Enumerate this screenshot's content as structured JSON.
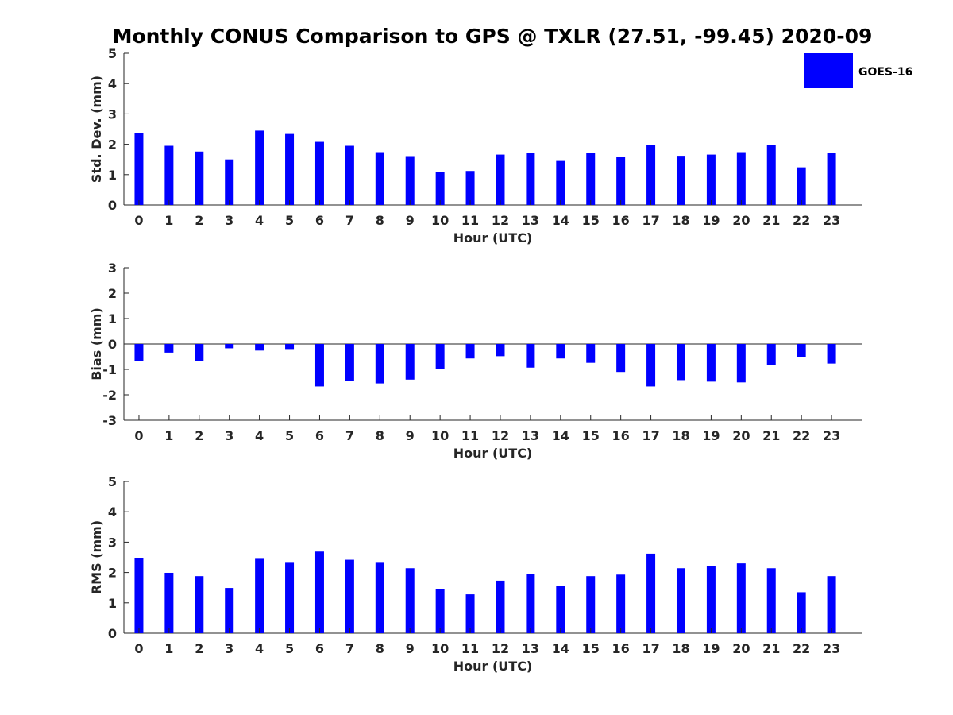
{
  "chart_data": {
    "title": "Monthly CONUS Comparison to GPS @ TXLR (27.51, -99.45) 2020-09",
    "legend": {
      "label": "GOES-16",
      "color": "#0000ff",
      "placement": "top-right"
    },
    "bar_color": "#0000ff",
    "grid": false,
    "panels": [
      {
        "type": "bar",
        "name": "std-dev",
        "ylabel": "Std. Dev. (mm)",
        "xlabel": "Hour (UTC)",
        "ylim": [
          0,
          5
        ],
        "yticks": [
          0,
          1,
          2,
          3,
          4,
          5
        ],
        "categories": [
          "0",
          "1",
          "2",
          "3",
          "4",
          "5",
          "6",
          "7",
          "8",
          "9",
          "10",
          "11",
          "12",
          "13",
          "14",
          "15",
          "16",
          "17",
          "18",
          "19",
          "20",
          "21",
          "22",
          "23"
        ],
        "values": [
          2.37,
          1.95,
          1.76,
          1.5,
          2.45,
          2.34,
          2.08,
          1.95,
          1.74,
          1.61,
          1.09,
          1.12,
          1.66,
          1.71,
          1.45,
          1.72,
          1.58,
          1.98,
          1.62,
          1.66,
          1.74,
          1.98,
          1.24,
          1.72
        ]
      },
      {
        "type": "bar",
        "name": "bias",
        "ylabel": "Bias (mm)",
        "xlabel": "Hour (UTC)",
        "ylim": [
          -3,
          3
        ],
        "yticks": [
          -3,
          -2,
          -1,
          0,
          1,
          2,
          3
        ],
        "categories": [
          "0",
          "1",
          "2",
          "3",
          "4",
          "5",
          "6",
          "7",
          "8",
          "9",
          "10",
          "11",
          "12",
          "13",
          "14",
          "15",
          "16",
          "17",
          "18",
          "19",
          "20",
          "21",
          "22",
          "23"
        ],
        "values": [
          -0.67,
          -0.34,
          -0.66,
          -0.17,
          -0.26,
          -0.2,
          -1.67,
          -1.46,
          -1.55,
          -1.4,
          -0.98,
          -0.57,
          -0.48,
          -0.93,
          -0.57,
          -0.74,
          -1.1,
          -1.67,
          -1.42,
          -1.48,
          -1.51,
          -0.83,
          -0.51,
          -0.77
        ]
      },
      {
        "type": "bar",
        "name": "rms",
        "ylabel": "RMS (mm)",
        "xlabel": "Hour (UTC)",
        "ylim": [
          0,
          5
        ],
        "yticks": [
          0,
          1,
          2,
          3,
          4,
          5
        ],
        "categories": [
          "0",
          "1",
          "2",
          "3",
          "4",
          "5",
          "6",
          "7",
          "8",
          "9",
          "10",
          "11",
          "12",
          "13",
          "14",
          "15",
          "16",
          "17",
          "18",
          "19",
          "20",
          "21",
          "22",
          "23"
        ],
        "values": [
          2.48,
          1.99,
          1.88,
          1.49,
          2.45,
          2.32,
          2.69,
          2.42,
          2.32,
          2.14,
          1.46,
          1.28,
          1.73,
          1.96,
          1.57,
          1.88,
          1.93,
          2.62,
          2.14,
          2.22,
          2.3,
          2.14,
          1.35,
          1.88
        ]
      }
    ]
  }
}
